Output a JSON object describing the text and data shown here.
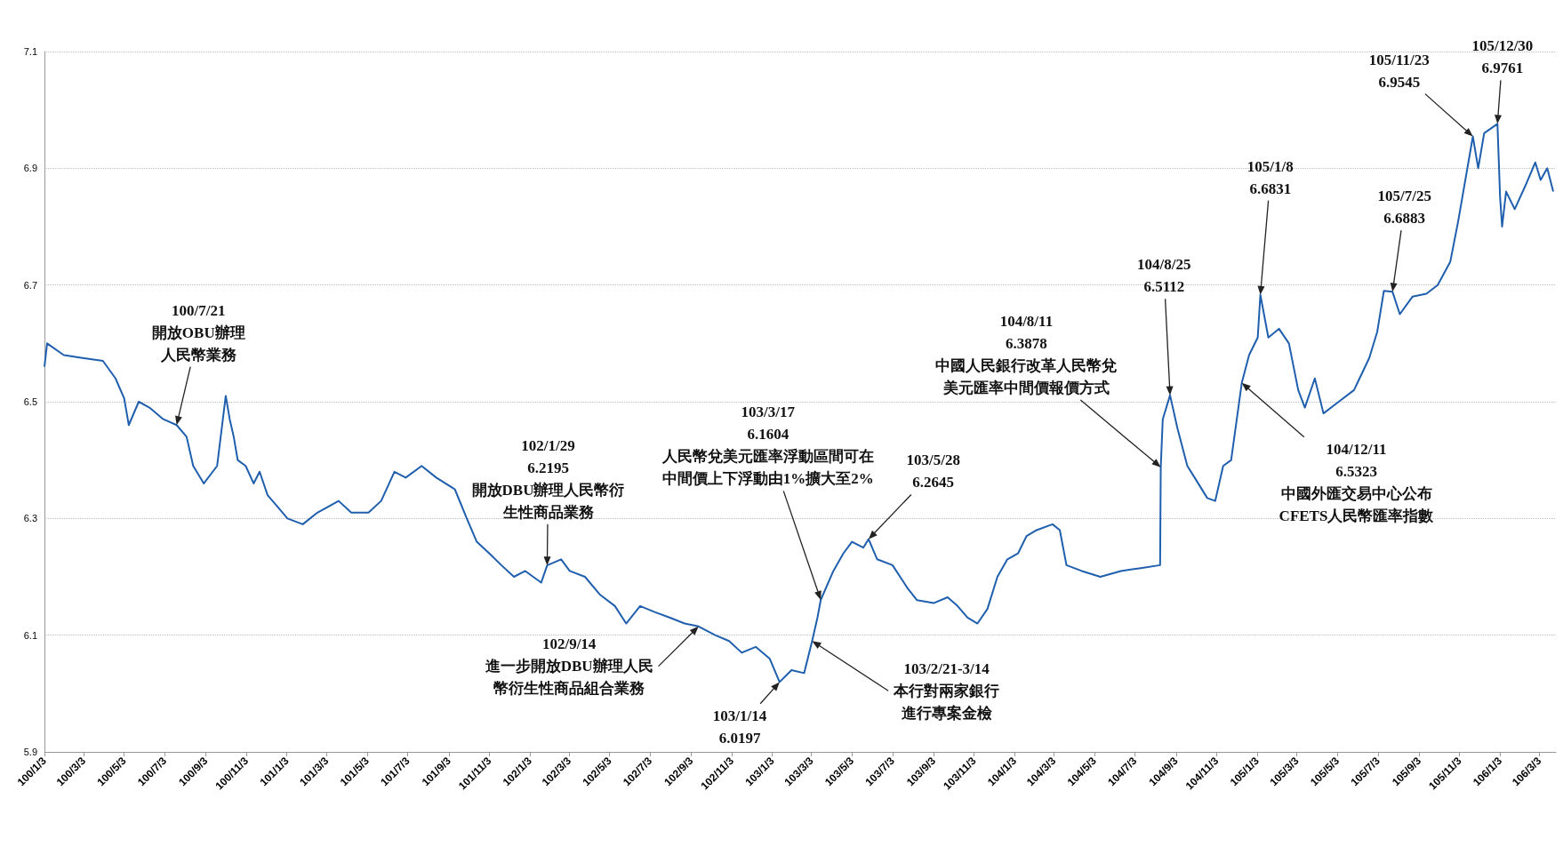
{
  "chart_data": {
    "type": "line",
    "grid": "y",
    "xlim": [
      "2011-01-03",
      "2017-03-28"
    ],
    "xticks": [
      {
        "value": "2011-01-03",
        "label": "100/1/3"
      },
      {
        "value": "2011-03-03",
        "label": "100/3/3"
      },
      {
        "value": "2011-05-03",
        "label": "100/5/3"
      },
      {
        "value": "2011-07-03",
        "label": "100/7/3"
      },
      {
        "value": "2011-09-03",
        "label": "100/9/3"
      },
      {
        "value": "2011-11-03",
        "label": "100/11/3"
      },
      {
        "value": "2012-01-03",
        "label": "101/1/3"
      },
      {
        "value": "2012-03-03",
        "label": "101/3/3"
      },
      {
        "value": "2012-05-03",
        "label": "101/5/3"
      },
      {
        "value": "2012-07-03",
        "label": "101/7/3"
      },
      {
        "value": "2012-09-03",
        "label": "101/9/3"
      },
      {
        "value": "2012-11-03",
        "label": "101/11/3"
      },
      {
        "value": "2013-01-03",
        "label": "102/1/3"
      },
      {
        "value": "2013-03-03",
        "label": "102/3/3"
      },
      {
        "value": "2013-05-03",
        "label": "102/5/3"
      },
      {
        "value": "2013-07-03",
        "label": "102/7/3"
      },
      {
        "value": "2013-09-03",
        "label": "102/9/3"
      },
      {
        "value": "2013-11-03",
        "label": "102/11/3"
      },
      {
        "value": "2014-01-03",
        "label": "103/1/3"
      },
      {
        "value": "2014-03-03",
        "label": "103/3/3"
      },
      {
        "value": "2014-05-03",
        "label": "103/5/3"
      },
      {
        "value": "2014-07-03",
        "label": "103/7/3"
      },
      {
        "value": "2014-09-03",
        "label": "103/9/3"
      },
      {
        "value": "2014-11-03",
        "label": "103/11/3"
      },
      {
        "value": "2015-01-03",
        "label": "104/1/3"
      },
      {
        "value": "2015-03-03",
        "label": "104/3/3"
      },
      {
        "value": "2015-05-03",
        "label": "104/5/3"
      },
      {
        "value": "2015-07-03",
        "label": "104/7/3"
      },
      {
        "value": "2015-09-03",
        "label": "104/9/3"
      },
      {
        "value": "2015-11-03",
        "label": "104/11/3"
      },
      {
        "value": "2016-01-03",
        "label": "105/1/3"
      },
      {
        "value": "2016-03-03",
        "label": "105/3/3"
      },
      {
        "value": "2016-05-03",
        "label": "105/5/3"
      },
      {
        "value": "2016-07-03",
        "label": "105/7/3"
      },
      {
        "value": "2016-09-03",
        "label": "105/9/3"
      },
      {
        "value": "2016-11-03",
        "label": "105/11/3"
      },
      {
        "value": "2017-01-03",
        "label": "106/1/3"
      },
      {
        "value": "2017-03-03",
        "label": "106/3/3"
      }
    ],
    "ylim": [
      5.9,
      7.1
    ],
    "yticks": [
      5.9,
      6.1,
      6.3,
      6.5,
      6.7,
      6.9,
      7.1
    ],
    "series": [
      {
        "color": "#1f5fae",
        "x": [
          "2011-01-03",
          "2011-01-07",
          "2011-02-01",
          "2011-03-01",
          "2011-04-01",
          "2011-04-20",
          "2011-05-03",
          "2011-05-10",
          "2011-05-25",
          "2011-06-10",
          "2011-07-01",
          "2011-07-21",
          "2011-08-05",
          "2011-08-15",
          "2011-08-31",
          "2011-09-20",
          "2011-10-03",
          "2011-10-09",
          "2011-10-15",
          "2011-10-21",
          "2011-11-02",
          "2011-11-14",
          "2011-11-23",
          "2011-12-05",
          "2011-12-20",
          "2012-01-04",
          "2012-01-27",
          "2012-02-18",
          "2012-03-21",
          "2012-04-09",
          "2012-05-05",
          "2012-05-24",
          "2012-06-13",
          "2012-06-30",
          "2012-07-24",
          "2012-08-15",
          "2012-09-12",
          "2012-09-30",
          "2012-10-15",
          "2012-11-03",
          "2012-11-21",
          "2012-12-10",
          "2012-12-27",
          "2013-01-20",
          "2013-01-29",
          "2013-02-19",
          "2013-03-04",
          "2013-03-27",
          "2013-04-18",
          "2013-05-11",
          "2013-05-28",
          "2013-06-18",
          "2013-07-09",
          "2013-08-02",
          "2013-08-24",
          "2013-09-14",
          "2013-10-09",
          "2013-10-30",
          "2013-11-18",
          "2013-12-09",
          "2013-12-30",
          "2014-01-14",
          "2014-02-01",
          "2014-02-20",
          "2014-03-04",
          "2014-03-12",
          "2014-03-17",
          "2014-04-05",
          "2014-04-20",
          "2014-05-03",
          "2014-05-20",
          "2014-05-28",
          "2014-06-10",
          "2014-07-03",
          "2014-07-26",
          "2014-08-09",
          "2014-09-03",
          "2014-09-24",
          "2014-10-09",
          "2014-10-24",
          "2014-11-08",
          "2014-11-23",
          "2014-12-08",
          "2014-12-23",
          "2015-01-08",
          "2015-01-21",
          "2015-02-05",
          "2015-03-01",
          "2015-03-12",
          "2015-03-22",
          "2015-04-14",
          "2015-05-12",
          "2015-06-12",
          "2015-07-12",
          "2015-08-10",
          "2015-08-11",
          "2015-08-14",
          "2015-08-25",
          "2015-09-05",
          "2015-09-20",
          "2015-10-01",
          "2015-10-20",
          "2015-11-01",
          "2015-11-13",
          "2015-11-25",
          "2015-12-11",
          "2015-12-22",
          "2016-01-04",
          "2016-01-08",
          "2016-01-20",
          "2016-02-05",
          "2016-02-20",
          "2016-03-05",
          "2016-03-15",
          "2016-03-30",
          "2016-04-12",
          "2016-05-05",
          "2016-05-28",
          "2016-06-20",
          "2016-07-02",
          "2016-07-12",
          "2016-07-25",
          "2016-08-05",
          "2016-08-24",
          "2016-09-14",
          "2016-10-01",
          "2016-10-20",
          "2016-11-01",
          "2016-11-23",
          "2016-12-01",
          "2016-12-10",
          "2016-12-30",
          "2017-01-03",
          "2017-01-06",
          "2017-01-12",
          "2017-01-25",
          "2017-02-10",
          "2017-02-25",
          "2017-03-05",
          "2017-03-15",
          "2017-03-24"
        ],
        "values": [
          6.56,
          6.6,
          6.58,
          6.575,
          6.57,
          6.54,
          6.506,
          6.46,
          6.5,
          6.49,
          6.47,
          6.46,
          6.44,
          6.39,
          6.36,
          6.39,
          6.51,
          6.47,
          6.44,
          6.4,
          6.39,
          6.36,
          6.38,
          6.34,
          6.32,
          6.3,
          6.29,
          6.31,
          6.33,
          6.31,
          6.31,
          6.33,
          6.38,
          6.37,
          6.39,
          6.37,
          6.35,
          6.3,
          6.26,
          6.24,
          6.22,
          6.2,
          6.21,
          6.19,
          6.2195,
          6.23,
          6.21,
          6.2,
          6.17,
          6.15,
          6.12,
          6.15,
          6.14,
          6.13,
          6.12,
          6.115,
          6.1,
          6.09,
          6.07,
          6.08,
          6.06,
          6.0197,
          6.04,
          6.035,
          6.09,
          6.13,
          6.1604,
          6.21,
          6.24,
          6.26,
          6.25,
          6.2645,
          6.23,
          6.22,
          6.18,
          6.16,
          6.155,
          6.165,
          6.15,
          6.13,
          6.12,
          6.145,
          6.2,
          6.23,
          6.24,
          6.27,
          6.28,
          6.29,
          6.28,
          6.22,
          6.21,
          6.2,
          6.21,
          6.215,
          6.22,
          6.3878,
          6.47,
          6.5112,
          6.455,
          6.39,
          6.37,
          6.335,
          6.33,
          6.39,
          6.4,
          6.5323,
          6.58,
          6.61,
          6.6831,
          6.61,
          6.625,
          6.6,
          6.52,
          6.49,
          6.54,
          6.48,
          6.5,
          6.52,
          6.575,
          6.62,
          6.69,
          6.6883,
          6.65,
          6.68,
          6.685,
          6.7,
          6.74,
          6.81,
          6.9545,
          6.9,
          6.96,
          6.9761,
          6.85,
          6.8,
          6.86,
          6.83,
          6.87,
          6.91,
          6.88,
          6.9,
          6.86
        ]
      }
    ],
    "annotations": [
      {
        "text": "100/7/21\n開放OBU辦理人民幣業務",
        "x": "2011-07-21",
        "y": 6.46
      },
      {
        "text": "102/1/29\n6.2195\n開放DBU辦理人民幣衍生性商品業務",
        "x": "2013-01-29",
        "y": 6.2195
      },
      {
        "text": "102/9/14\n進一步開放DBU辦理人民幣衍生性商品組合業務",
        "x": "2013-09-14",
        "y": 6.115
      },
      {
        "text": "103/1/14\n6.0197",
        "x": "2014-01-14",
        "y": 6.0197
      },
      {
        "text": "103/3/17\n6.1604\n人民幣兌美元匯率浮動區間可在中間價上下浮動由1%擴大至2%",
        "x": "2014-03-17",
        "y": 6.1604
      },
      {
        "text": "103/2/21-3/14\n本行對兩家銀行進行專案金檢",
        "x": "2014-03-04",
        "y": 6.09
      },
      {
        "text": "103/5/28\n6.2645",
        "x": "2014-05-28",
        "y": 6.2645
      },
      {
        "text": "104/8/11\n6.3878\n中國人民銀行改革人民幣兌美元匯率中間價報價方式",
        "x": "2015-08-11",
        "y": 6.3878
      },
      {
        "text": "104/8/25\n6.5112",
        "x": "2015-08-25",
        "y": 6.5112
      },
      {
        "text": "104/12/11\n6.5323\n中國外匯交易中心公布CFETS人民幣匯率指數",
        "x": "2015-12-11",
        "y": 6.5323
      },
      {
        "text": "105/1/8\n6.6831",
        "x": "2016-01-08",
        "y": 6.6831
      },
      {
        "text": "105/7/25\n6.6883",
        "x": "2016-07-25",
        "y": 6.6883
      },
      {
        "text": "105/11/23\n6.9545",
        "x": "2016-11-23",
        "y": 6.9545
      },
      {
        "text": "105/12/30\n6.9761",
        "x": "2016-12-30",
        "y": 6.9761
      }
    ]
  }
}
